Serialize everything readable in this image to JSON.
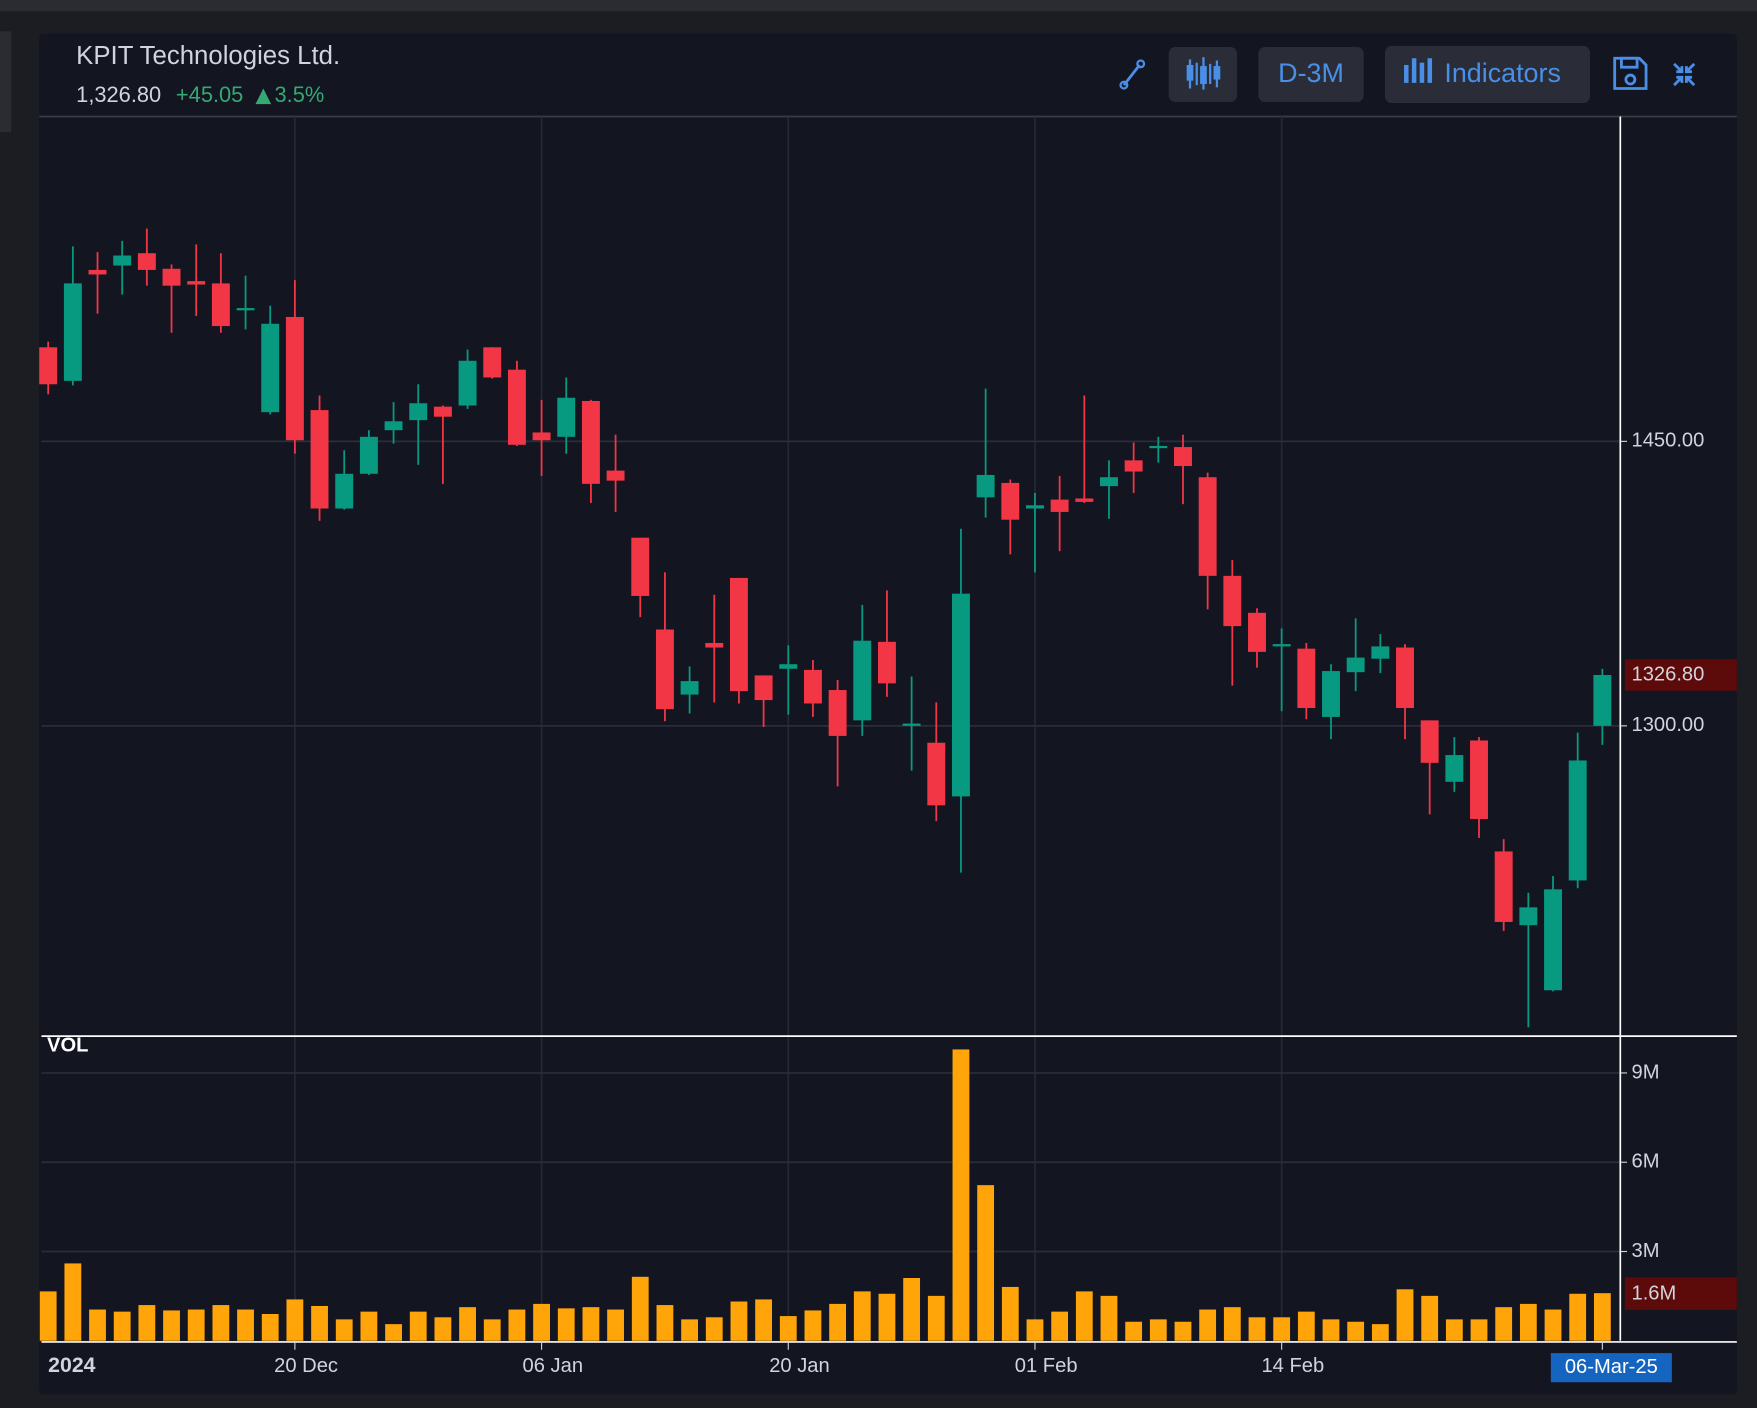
{
  "header": {
    "title": "KPIT Technologies Ltd.",
    "price": "1,326.80",
    "change": "+45.05",
    "change_pct": "3.5%"
  },
  "toolbar": {
    "range": "D-3M",
    "indicators": "Indicators"
  },
  "chart_data": {
    "type": "candlestick",
    "categories": [
      "2024",
      null,
      null,
      null,
      null,
      null,
      null,
      null,
      null,
      null,
      "20 Dec",
      null,
      null,
      null,
      null,
      null,
      null,
      null,
      null,
      null,
      "06 Jan",
      null,
      null,
      null,
      null,
      null,
      null,
      null,
      null,
      null,
      "20 Jan",
      null,
      null,
      null,
      null,
      null,
      null,
      null,
      null,
      null,
      "01 Feb",
      null,
      null,
      null,
      null,
      null,
      null,
      null,
      null,
      null,
      "14 Feb",
      null,
      null,
      null,
      null,
      null,
      null,
      null,
      null,
      null,
      null,
      null,
      null,
      "06-Mar-25"
    ],
    "open": [
      1499.6,
      1481.9,
      1540.4,
      1542.7,
      1549.2,
      1541.0,
      1534.5,
      1533.3,
      1519.1,
      1465.4,
      1515.6,
      1466.5,
      1414.6,
      1432.9,
      1455.9,
      1461.2,
      1468.3,
      1468.9,
      1499.6,
      1487.8,
      1454.7,
      1452.4,
      1471.3,
      1434.6,
      1399.2,
      1350.8,
      1316.5,
      1343.7,
      1378.0,
      1326.6,
      1330.1,
      1329.5,
      1318.9,
      1302.9,
      1344.3,
      1300.0,
      1291.1,
      1262.8,
      1420.5,
      1428.1,
      1414.6,
      1419.3,
      1419.9,
      1426.4,
      1440.0,
      1446.5,
      1447.0,
      1431.1,
      1379.1,
      1359.6,
      1341.9,
      1340.7,
      1304.7,
      1328.3,
      1335.4,
      1341.3,
      1302.9,
      1270.5,
      1292.3,
      1233.8,
      1194.9,
      1160.6,
      1218.5,
      1300.0
    ],
    "high": [
      1502.6,
      1552.8,
      1549.8,
      1555.7,
      1562.2,
      1543.3,
      1553.9,
      1549.2,
      1537.4,
      1521.5,
      1535.0,
      1474.2,
      1445.3,
      1455.9,
      1470.7,
      1480.1,
      1468.9,
      1498.4,
      1499.6,
      1492.5,
      1471.9,
      1483.7,
      1471.9,
      1453.5,
      1399.2,
      1380.9,
      1331.3,
      1369.1,
      1378.0,
      1326.6,
      1342.5,
      1334.7,
      1324.2,
      1363.8,
      1371.4,
      1326.0,
      1312.4,
      1403.9,
      1477.8,
      1429.9,
      1422.8,
      1431.7,
      1474.2,
      1440.0,
      1449.4,
      1452.4,
      1453.5,
      1433.5,
      1387.4,
      1362.0,
      1351.4,
      1343.7,
      1332.5,
      1356.7,
      1348.4,
      1343.1,
      1302.9,
      1294.1,
      1294.1,
      1240.3,
      1212.0,
      1220.8,
      1296.4,
      1330.1
    ],
    "low": [
      1474.8,
      1479.5,
      1517.3,
      1527.4,
      1532.1,
      1507.3,
      1516.1,
      1507.3,
      1509.0,
      1464.2,
      1443.5,
      1408.1,
      1414.0,
      1432.3,
      1448.8,
      1437.6,
      1427.6,
      1467.1,
      1483.1,
      1447.6,
      1431.7,
      1443.5,
      1417.5,
      1412.8,
      1357.3,
      1302.4,
      1306.5,
      1312.4,
      1311.8,
      1299.4,
      1305.9,
      1304.7,
      1268.1,
      1294.7,
      1315.3,
      1276.4,
      1249.8,
      1222.6,
      1409.8,
      1390.4,
      1380.9,
      1392.1,
      1417.5,
      1409.2,
      1422.8,
      1438.8,
      1416.9,
      1361.4,
      1321.2,
      1330.7,
      1307.7,
      1303.5,
      1293.0,
      1318.3,
      1327.8,
      1293.0,
      1253.3,
      1265.2,
      1240.9,
      1191.9,
      1141.1,
      1160.0,
      1214.4,
      1290.0
    ],
    "close": [
      1480.1,
      1533.3,
      1538.0,
      1548.0,
      1540.4,
      1532.1,
      1532.7,
      1510.8,
      1520.3,
      1512.0,
      1450.6,
      1414.6,
      1432.9,
      1452.4,
      1460.6,
      1470.1,
      1463.0,
      1492.5,
      1483.7,
      1448.2,
      1450.6,
      1473.0,
      1427.6,
      1429.3,
      1368.5,
      1308.8,
      1323.6,
      1341.3,
      1318.3,
      1313.6,
      1332.5,
      1311.8,
      1294.7,
      1344.9,
      1322.4,
      1301.2,
      1258.1,
      1369.7,
      1432.3,
      1408.7,
      1416.3,
      1412.8,
      1418.1,
      1431.1,
      1434.1,
      1447.6,
      1437.0,
      1379.1,
      1352.6,
      1339.0,
      1343.1,
      1309.4,
      1328.9,
      1336.0,
      1341.9,
      1309.4,
      1280.5,
      1284.6,
      1250.9,
      1196.6,
      1204.3,
      1213.8,
      1281.75,
      1326.8
    ],
    "last_close_label": "1326.80",
    "up_color": "#089981",
    "down_color": "#f23645",
    "ylim": [
      1137,
      1621.3
    ],
    "yticks": [
      {
        "value": 1300,
        "label": "1300.00"
      },
      {
        "value": 1450,
        "label": "1450.00"
      }
    ],
    "grid": true,
    "volume": {
      "name": "VOL",
      "color": "#ffa50a",
      "values": [
        1660000,
        2600000,
        1050000,
        980000,
        1200000,
        1020000,
        1050000,
        1200000,
        1050000,
        900000,
        1390000,
        1170000,
        720000,
        980000,
        560000,
        980000,
        790000,
        1130000,
        720000,
        1050000,
        1240000,
        1090000,
        1130000,
        1050000,
        2150000,
        1200000,
        720000,
        790000,
        1320000,
        1390000,
        830000,
        1020000,
        1240000,
        1660000,
        1580000,
        2110000,
        1510000,
        9790000,
        5230000,
        1810000,
        720000,
        980000,
        1660000,
        1510000,
        640000,
        720000,
        640000,
        1050000,
        1130000,
        790000,
        790000,
        980000,
        720000,
        640000,
        560000,
        1730000,
        1510000,
        720000,
        720000,
        1130000,
        1240000,
        1050000,
        1580000,
        1600000
      ],
      "last_value_label": "1.6M",
      "ylim": [
        0,
        10200000
      ],
      "yticks": [
        {
          "value": 3000000,
          "label": "3M"
        },
        {
          "value": 6000000,
          "label": "6M"
        },
        {
          "value": 9000000,
          "label": "9M"
        }
      ]
    }
  }
}
